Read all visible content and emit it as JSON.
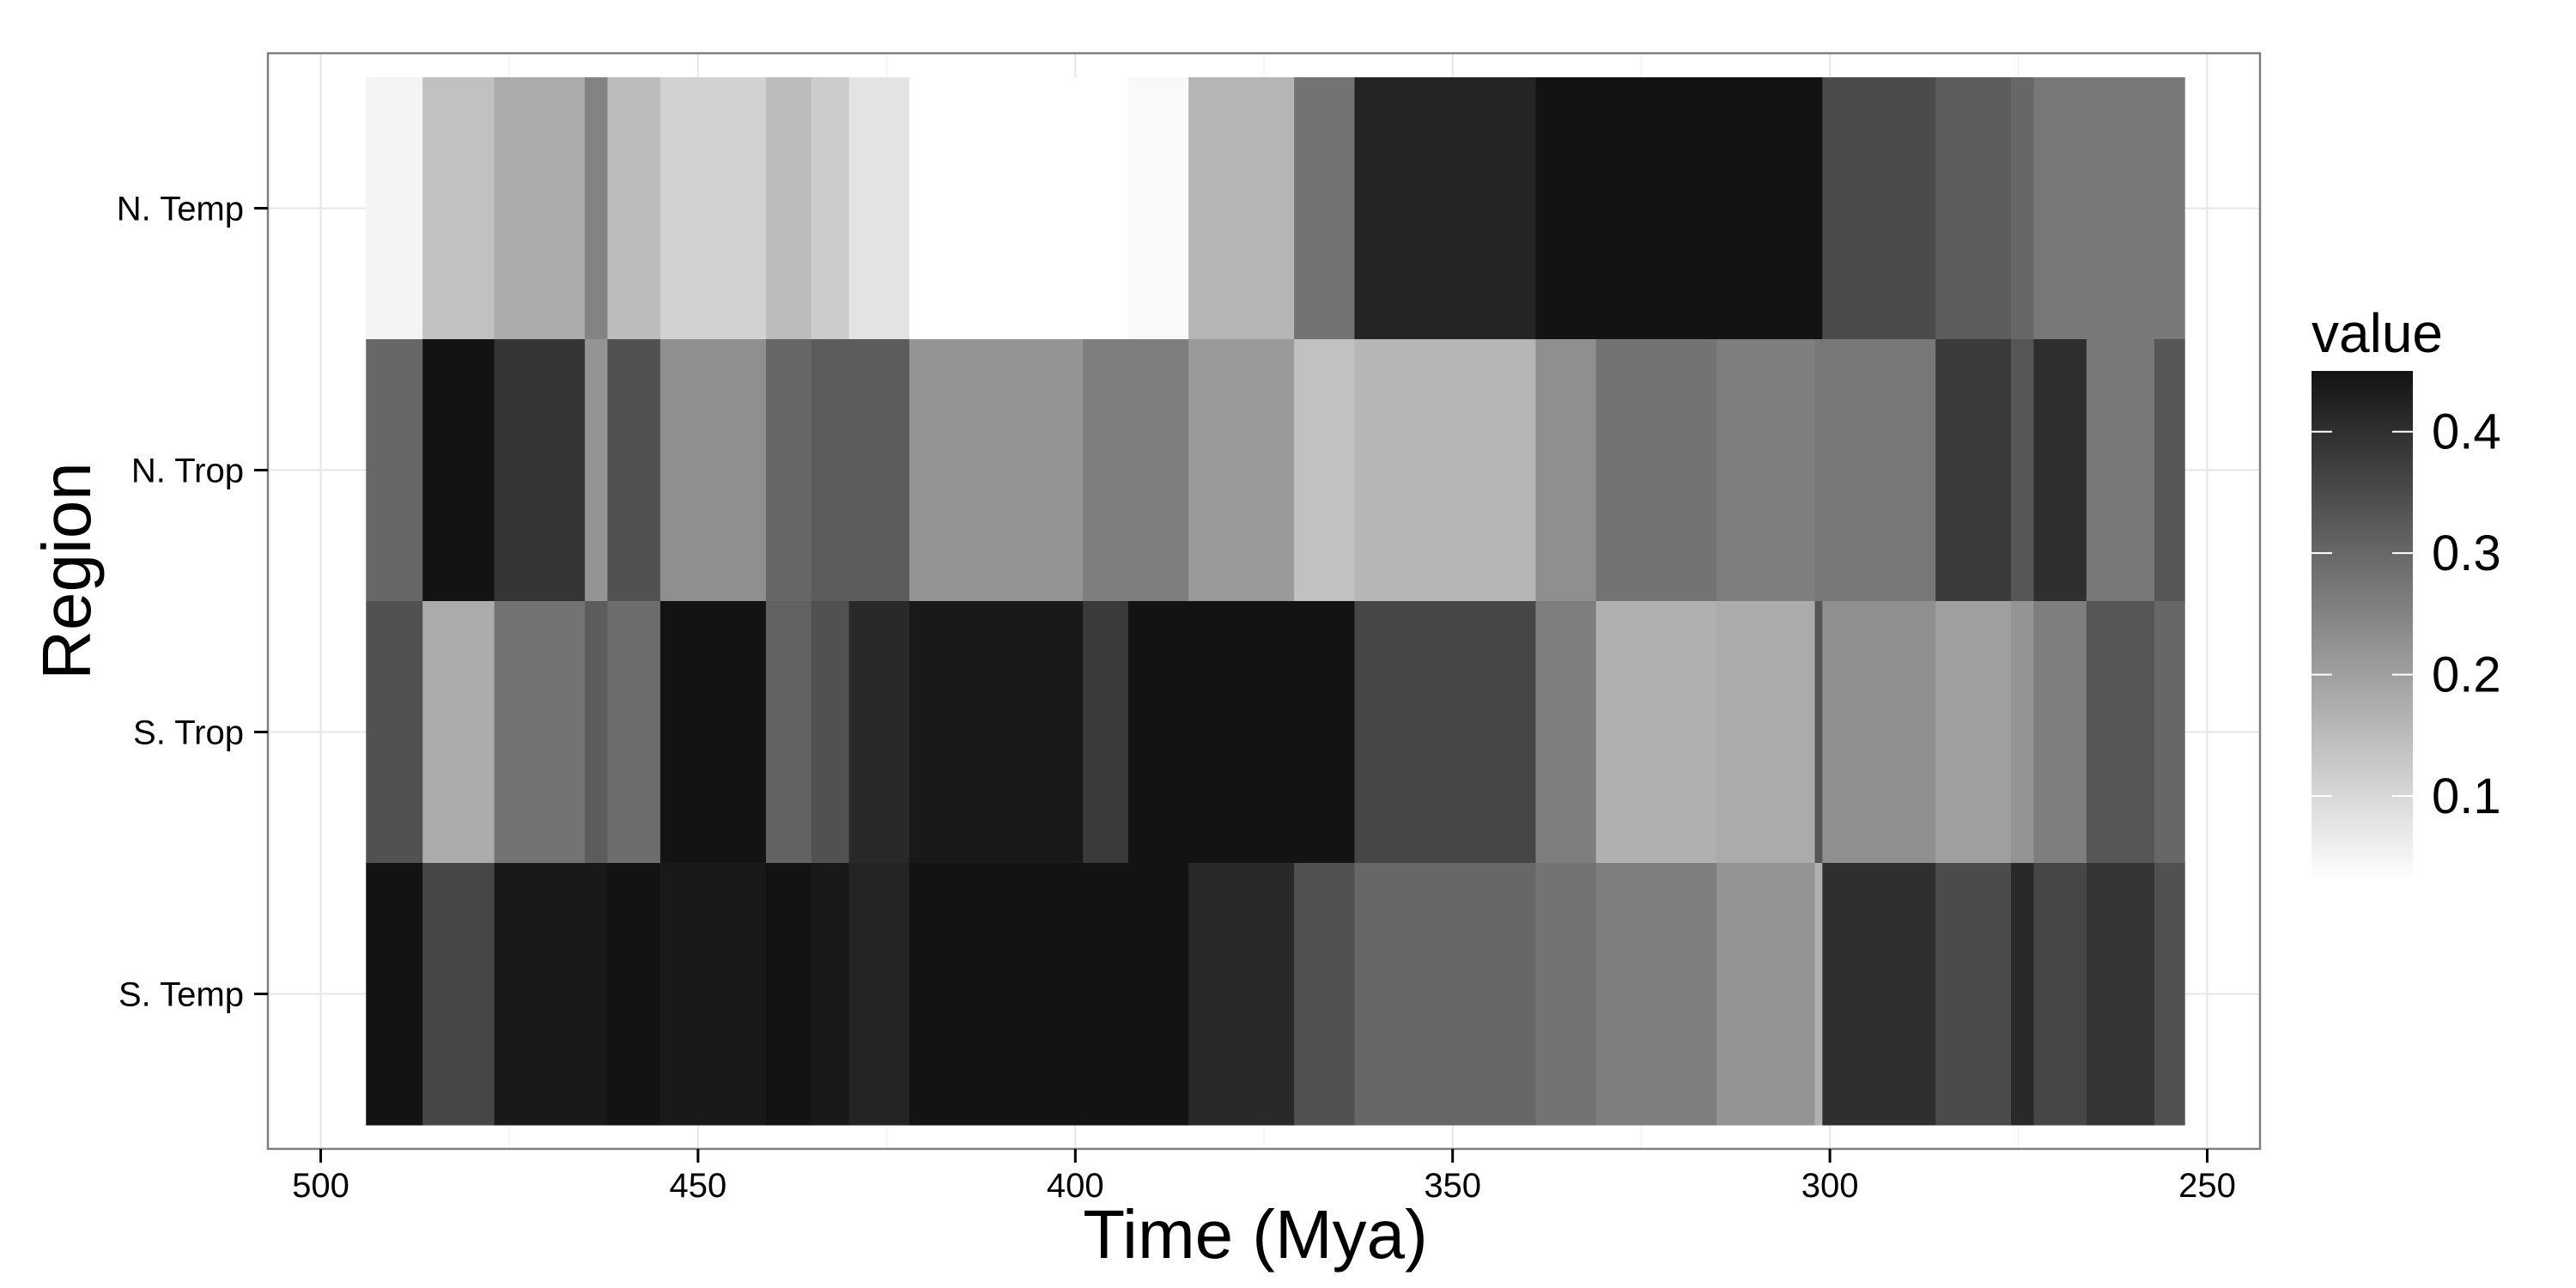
{
  "chart_data": {
    "type": "heatmap",
    "title": "",
    "xlabel": "Time (Mya)",
    "ylabel": "Region",
    "x_reversed": true,
    "xlim": [
      507,
      243
    ],
    "x_ticks": [
      500,
      450,
      400,
      350,
      300,
      250
    ],
    "regions": [
      "N. Temp",
      "N. Trop",
      "S. Trop",
      "S. Temp"
    ],
    "bin_edges": [
      494,
      486.5,
      477,
      465,
      462,
      455,
      441,
      435,
      430,
      422,
      399,
      393,
      385,
      371,
      363,
      339,
      331,
      315,
      302,
      301,
      286,
      276,
      273,
      266,
      257,
      253
    ],
    "values": [
      [
        0.05,
        0.14,
        0.18,
        0.25,
        0.15,
        0.11,
        0.15,
        0.12,
        0.08,
        0.0,
        0.01,
        0.04,
        0.16,
        0.28,
        0.42,
        0.46,
        0.51,
        0.45,
        0.45,
        0.35,
        0.32,
        0.3,
        0.27,
        0.27,
        0.27
      ],
      [
        0.3,
        0.52,
        0.39,
        0.22,
        0.34,
        0.23,
        0.3,
        0.32,
        0.32,
        0.22,
        0.26,
        0.26,
        0.21,
        0.14,
        0.16,
        0.23,
        0.28,
        0.26,
        0.27,
        0.27,
        0.38,
        0.33,
        0.4,
        0.27,
        0.33
      ],
      [
        0.34,
        0.18,
        0.28,
        0.32,
        0.29,
        0.45,
        0.31,
        0.34,
        0.41,
        0.44,
        0.38,
        0.45,
        0.45,
        0.46,
        0.36,
        0.26,
        0.17,
        0.18,
        0.33,
        0.23,
        0.2,
        0.22,
        0.26,
        0.33,
        0.3
      ],
      [
        0.5,
        0.36,
        0.44,
        0.44,
        0.45,
        0.44,
        0.48,
        0.44,
        0.42,
        0.52,
        0.52,
        0.45,
        0.41,
        0.34,
        0.3,
        0.28,
        0.26,
        0.22,
        0.17,
        0.4,
        0.35,
        0.41,
        0.36,
        0.39,
        0.34
      ]
    ],
    "legend": {
      "title": "value",
      "placement": "right",
      "range": [
        0.03,
        0.45
      ],
      "ticks": [
        0.1,
        0.2,
        0.3,
        0.4
      ]
    },
    "grid": true
  }
}
